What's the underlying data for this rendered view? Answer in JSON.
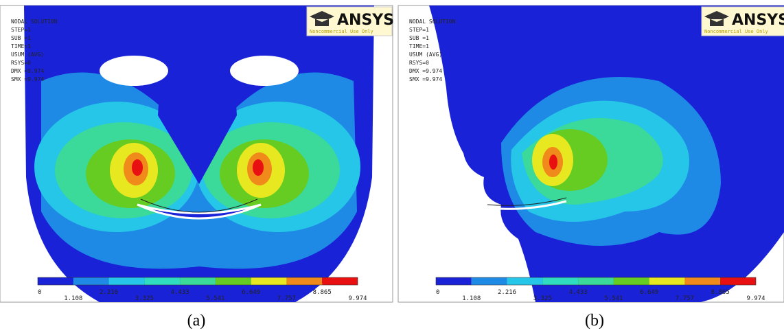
{
  "panels": [
    {
      "label": "(a)",
      "info": [
        "NODAL SOLUTION",
        "STEP=1",
        "SUB =1",
        "TIME=1",
        "USUM (AVG)",
        "RSYS=0",
        "DMX =9.974",
        "SMX =9.974"
      ],
      "logo": {
        "name": "ANSYS",
        "note": "Noncommercial Use Only"
      },
      "colorbar_labels": [
        "0",
        "1.108",
        "2.216",
        "3.325",
        "4.433",
        "5.541",
        "6.649",
        "7.757",
        "8.865",
        "9.974"
      ]
    },
    {
      "label": "(b)",
      "info": [
        "NODAL SOLUTION",
        "STEP=1",
        "SUB =1",
        "TIME=1",
        "USUM (AVG)",
        "RSYS=0",
        "DMX =9.974",
        "SMX =9.974"
      ],
      "logo": {
        "name": "ANSYS",
        "note": "Noncommercial Use Only"
      },
      "colorbar_labels": [
        "0",
        "1.108",
        "2.216",
        "3.325",
        "4.433",
        "5.541",
        "6.649",
        "7.757",
        "8.865",
        "9.974"
      ]
    }
  ]
}
